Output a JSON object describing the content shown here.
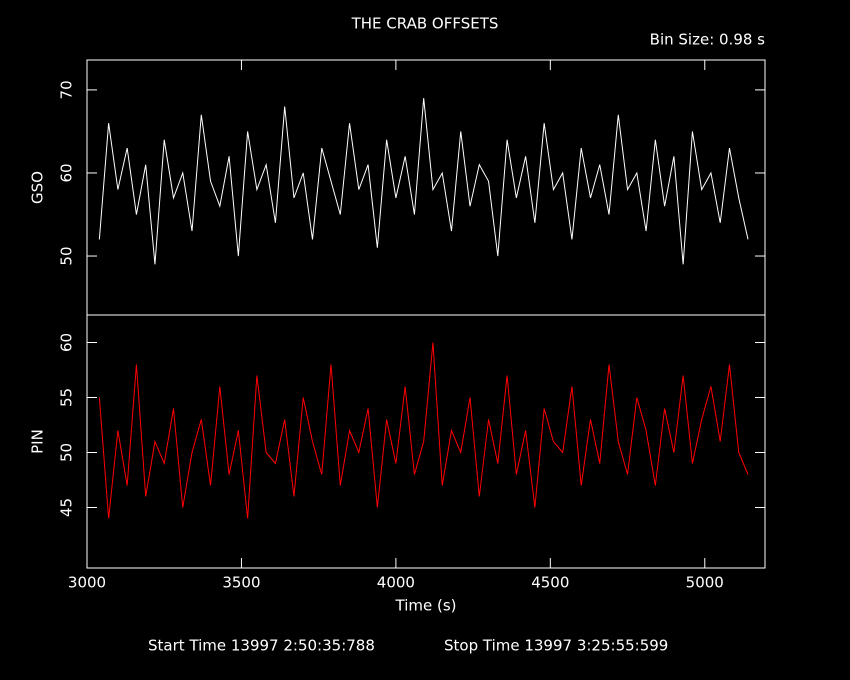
{
  "header": {
    "title": "THE CRAB OFFSETS",
    "bin_size": "Bin Size: 0.98 s"
  },
  "footer": {
    "start": "Start Time 13997  2:50:35:788",
    "stop": "Stop Time 13997  3:25:55:599"
  },
  "chart_data": [
    {
      "type": "line",
      "y_label": "GSO",
      "xlim": [
        3000,
        5195
      ],
      "ylim": [
        42.9,
        73.6
      ],
      "yticks": [
        50,
        60,
        70
      ],
      "x": [
        3040,
        3070,
        3100,
        3130,
        3160,
        3190,
        3220,
        3250,
        3280,
        3310,
        3340,
        3370,
        3400,
        3430,
        3460,
        3490,
        3520,
        3550,
        3580,
        3610,
        3640,
        3670,
        3700,
        3730,
        3760,
        3790,
        3820,
        3850,
        3880,
        3910,
        3940,
        3970,
        4000,
        4030,
        4060,
        4090,
        4120,
        4150,
        4180,
        4210,
        4240,
        4270,
        4300,
        4330,
        4360,
        4390,
        4420,
        4450,
        4480,
        4510,
        4540,
        4570,
        4600,
        4630,
        4660,
        4690,
        4720,
        4750,
        4780,
        4810,
        4840,
        4870,
        4900,
        4930,
        4960,
        4990,
        5020,
        5050,
        5080,
        5110,
        5140
      ],
      "series": [
        {
          "name": "GSO",
          "color": "#ffffff",
          "values": [
            52,
            66,
            58,
            63,
            55,
            61,
            49,
            64,
            57,
            60,
            53,
            67,
            59,
            56,
            62,
            50,
            65,
            58,
            61,
            54,
            68,
            57,
            60,
            52,
            63,
            59,
            55,
            66,
            58,
            61,
            51,
            64,
            57,
            62,
            55,
            69,
            58,
            60,
            53,
            65,
            56,
            61,
            59,
            50,
            64,
            57,
            62,
            54,
            66,
            58,
            60,
            52,
            63,
            57,
            61,
            55,
            67,
            58,
            60,
            53,
            64,
            56,
            62,
            49,
            65,
            58,
            60,
            54,
            63,
            57,
            52
          ]
        }
      ]
    },
    {
      "type": "line",
      "y_label": "PIN",
      "x_label": "Time (s)",
      "xlim": [
        3000,
        5195
      ],
      "xticks": [
        3000,
        3500,
        4000,
        4500,
        5000
      ],
      "ylim": [
        39.5,
        62.5
      ],
      "yticks": [
        45,
        50,
        55,
        60
      ],
      "x": [
        3040,
        3070,
        3100,
        3130,
        3160,
        3190,
        3220,
        3250,
        3280,
        3310,
        3340,
        3370,
        3400,
        3430,
        3460,
        3490,
        3520,
        3550,
        3580,
        3610,
        3640,
        3670,
        3700,
        3730,
        3760,
        3790,
        3820,
        3850,
        3880,
        3910,
        3940,
        3970,
        4000,
        4030,
        4060,
        4090,
        4120,
        4150,
        4180,
        4210,
        4240,
        4270,
        4300,
        4330,
        4360,
        4390,
        4420,
        4450,
        4480,
        4510,
        4540,
        4570,
        4600,
        4630,
        4660,
        4690,
        4720,
        4750,
        4780,
        4810,
        4840,
        4870,
        4900,
        4930,
        4960,
        4990,
        5020,
        5050,
        5080,
        5110,
        5140
      ],
      "series": [
        {
          "name": "PIN",
          "color": "#ff0000",
          "values": [
            55,
            44,
            52,
            47,
            58,
            46,
            51,
            49,
            54,
            45,
            50,
            53,
            47,
            56,
            48,
            52,
            44,
            57,
            50,
            49,
            53,
            46,
            55,
            51,
            48,
            58,
            47,
            52,
            50,
            54,
            45,
            53,
            49,
            56,
            48,
            51,
            60,
            47,
            52,
            50,
            55,
            46,
            53,
            49,
            57,
            48,
            52,
            45,
            54,
            51,
            50,
            56,
            47,
            53,
            49,
            58,
            51,
            48,
            55,
            52,
            47,
            54,
            50,
            57,
            49,
            53,
            56,
            51,
            58,
            50,
            48
          ]
        }
      ]
    }
  ]
}
